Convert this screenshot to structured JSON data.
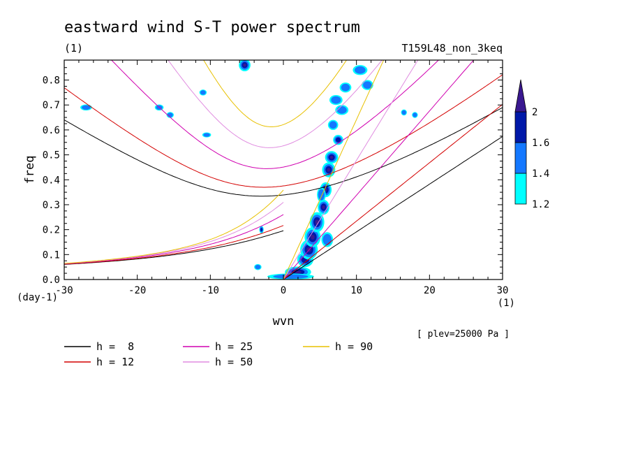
{
  "chart_data": {
    "type": "line",
    "title": "eastward wind S-T power spectrum",
    "subtitle_left": "(1)",
    "subtitle_right": "T159L48_non_3keq",
    "xlabel": "wvn",
    "ylabel": "freq",
    "x_unit": "(1)",
    "y_unit": "(day-1)",
    "note": "[ plev=25000 Pa ]",
    "xlim": [
      -30,
      30
    ],
    "ylim": [
      0,
      0.88
    ],
    "x_ticks": [
      -30,
      -20,
      -10,
      0,
      10,
      20,
      30
    ],
    "x_tick_labels": [
      "-30",
      "-20",
      "-10",
      "0",
      "10",
      "20",
      "30"
    ],
    "y_ticks": [
      0,
      0.1,
      0.2,
      0.3,
      0.4,
      0.5,
      0.6,
      0.7,
      0.8
    ],
    "y_tick_labels": [
      "0.0",
      "0.1",
      "0.2",
      "0.3",
      "0.4",
      "0.5",
      "0.6",
      "0.7",
      "0.8"
    ],
    "series": [
      {
        "name": "h =  8",
        "color": "#000000",
        "h": 8
      },
      {
        "name": "h = 12",
        "color": "#d40000",
        "h": 12
      },
      {
        "name": "h = 25",
        "color": "#d000b0",
        "h": 25
      },
      {
        "name": "h = 50",
        "color": "#e08ce0",
        "h": 50
      },
      {
        "name": "h = 90",
        "color": "#e8c000",
        "h": 90
      }
    ],
    "colorbar": {
      "levels": [
        "1.2",
        "1.4",
        "1.6",
        "2"
      ],
      "colors": [
        "#00ffff",
        "#1478ff",
        "#0018a8",
        "#3a1890"
      ]
    },
    "contour_patches": [
      {
        "x": 2.0,
        "y": 0.03,
        "rx": 1.8,
        "ry": 0.022,
        "level": 3
      },
      {
        "x": 1.0,
        "y": 0.012,
        "rx": 3.2,
        "ry": 0.012,
        "level": 1
      },
      {
        "x": 3.0,
        "y": 0.08,
        "rx": 1.1,
        "ry": 0.03,
        "level": 2
      },
      {
        "x": 3.5,
        "y": 0.12,
        "rx": 1.2,
        "ry": 0.04,
        "level": 3
      },
      {
        "x": 4.0,
        "y": 0.17,
        "rx": 1.1,
        "ry": 0.04,
        "level": 3
      },
      {
        "x": 4.6,
        "y": 0.23,
        "rx": 1.0,
        "ry": 0.04,
        "level": 3
      },
      {
        "x": 5.5,
        "y": 0.29,
        "rx": 0.8,
        "ry": 0.03,
        "level": 3
      },
      {
        "x": 5.8,
        "y": 0.36,
        "rx": 0.8,
        "ry": 0.03,
        "level": 3
      },
      {
        "x": 6.2,
        "y": 0.44,
        "rx": 0.9,
        "ry": 0.03,
        "level": 3
      },
      {
        "x": 6.6,
        "y": 0.49,
        "rx": 0.9,
        "ry": 0.025,
        "level": 3
      },
      {
        "x": 7.5,
        "y": 0.56,
        "rx": 0.7,
        "ry": 0.02,
        "level": 2
      },
      {
        "x": 6.8,
        "y": 0.62,
        "rx": 0.7,
        "ry": 0.02,
        "level": 1
      },
      {
        "x": 8.0,
        "y": 0.68,
        "rx": 0.9,
        "ry": 0.02,
        "level": 1
      },
      {
        "x": 7.2,
        "y": 0.72,
        "rx": 0.9,
        "ry": 0.02,
        "level": 1
      },
      {
        "x": 8.5,
        "y": 0.77,
        "rx": 0.8,
        "ry": 0.02,
        "level": 1
      },
      {
        "x": 11.5,
        "y": 0.78,
        "rx": 0.8,
        "ry": 0.02,
        "level": 1
      },
      {
        "x": 10.5,
        "y": 0.84,
        "rx": 1.0,
        "ry": 0.02,
        "level": 1
      },
      {
        "x": -5.3,
        "y": 0.86,
        "rx": 0.8,
        "ry": 0.025,
        "level": 3
      },
      {
        "x": -3.0,
        "y": 0.2,
        "rx": 0.3,
        "ry": 0.015,
        "level": 2
      },
      {
        "x": -27.0,
        "y": 0.69,
        "rx": 0.8,
        "ry": 0.012,
        "level": 1
      },
      {
        "x": -17.0,
        "y": 0.69,
        "rx": 0.6,
        "ry": 0.012,
        "level": 1
      },
      {
        "x": -15.5,
        "y": 0.66,
        "rx": 0.5,
        "ry": 0.012,
        "level": 1
      },
      {
        "x": -11.0,
        "y": 0.75,
        "rx": 0.5,
        "ry": 0.012,
        "level": 1
      },
      {
        "x": -10.5,
        "y": 0.58,
        "rx": 0.6,
        "ry": 0.01,
        "level": 1
      },
      {
        "x": -3.5,
        "y": 0.05,
        "rx": 0.5,
        "ry": 0.012,
        "level": 1
      },
      {
        "x": 16.5,
        "y": 0.67,
        "rx": 0.4,
        "ry": 0.012,
        "level": 1
      },
      {
        "x": 18.0,
        "y": 0.66,
        "rx": 0.4,
        "ry": 0.012,
        "level": 1
      },
      {
        "x": 6.0,
        "y": 0.16,
        "rx": 0.8,
        "ry": 0.03,
        "level": 1
      },
      {
        "x": 5.2,
        "y": 0.34,
        "rx": 0.6,
        "ry": 0.03,
        "level": 1
      }
    ]
  }
}
